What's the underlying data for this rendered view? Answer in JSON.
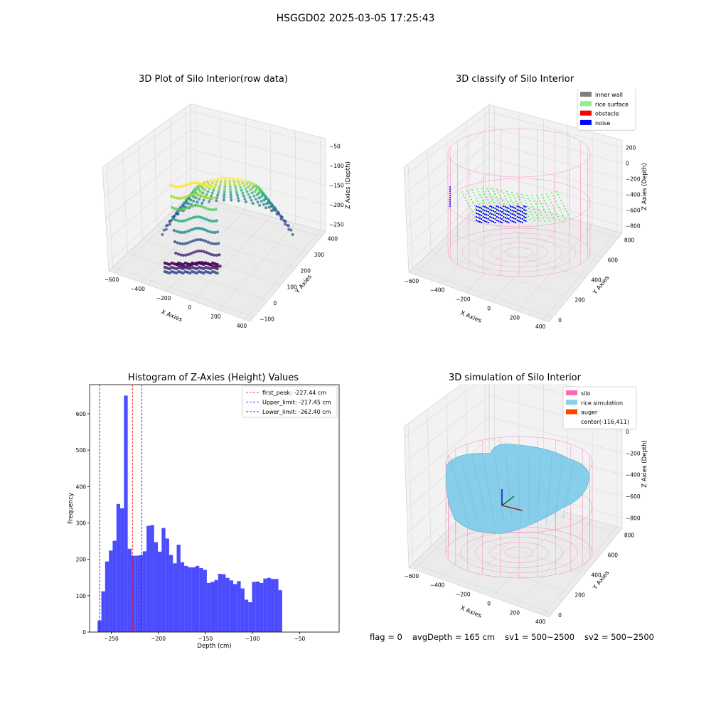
{
  "figure": {
    "suptitle": "HSGGD02 2025-03-05 17:25:43"
  },
  "chart_data": [
    {
      "type": "scatter",
      "subtype": "3d",
      "title": "3D Plot of Silo Interior(row data)",
      "xlabel": "X Axies",
      "ylabel": "Y Axies",
      "zlabel": "Z Axies (Depth)",
      "x_ticks": [
        "−600",
        "−400",
        "−200",
        "0",
        "200",
        "400"
      ],
      "y_ticks": [
        "−100",
        "0",
        "100",
        "200",
        "300",
        "400"
      ],
      "z_ticks": [
        "−50",
        "−100",
        "−150",
        "−200",
        "−250"
      ],
      "colormap": "viridis"
    },
    {
      "type": "scatter",
      "subtype": "3d",
      "title": "3D classify of Silo Interior",
      "xlabel": "X Axies",
      "ylabel": "Y Axies",
      "zlabel": "Z Axies (Depth)",
      "x_ticks": [
        "−600",
        "−400",
        "−200",
        "0",
        "200",
        "400"
      ],
      "y_ticks": [
        "0",
        "200",
        "400",
        "600",
        "800"
      ],
      "z_ticks": [
        "200",
        "0",
        "−200",
        "−400",
        "−600",
        "−800"
      ],
      "legend": [
        {
          "label": "inner wall",
          "color": "#808080"
        },
        {
          "label": "rice surface",
          "color": "#90ee90"
        },
        {
          "label": "obstacle",
          "color": "#ff0000"
        },
        {
          "label": "noise",
          "color": "#0000ff"
        }
      ],
      "legend_position": "top-right"
    },
    {
      "type": "bar",
      "subtype": "histogram",
      "title": "Histogram of Z-Axies (Height) Values",
      "xlabel": "Depth (cm)",
      "ylabel": "Frequency",
      "xlim": [
        -273,
        -8
      ],
      "ylim": [
        0,
        680
      ],
      "x_ticks": [
        -250,
        -200,
        -150,
        -100,
        -50
      ],
      "x_tick_labels": [
        "−250",
        "−200",
        "−150",
        "−100",
        "−50"
      ],
      "y_ticks": [
        0,
        100,
        200,
        300,
        400,
        500,
        600
      ],
      "bar_color": "#0000ff",
      "bin_start": -264.5,
      "bin_width": 4,
      "values": [
        32,
        112,
        194,
        224,
        251,
        352,
        340,
        650,
        229,
        210,
        210,
        212,
        222,
        292,
        294,
        247,
        221,
        286,
        257,
        212,
        189,
        240,
        192,
        182,
        178,
        178,
        182,
        176,
        171,
        135,
        138,
        143,
        160,
        159,
        149,
        142,
        132,
        140,
        120,
        89,
        82,
        138,
        139,
        135,
        147,
        149,
        146,
        146,
        115
      ],
      "vlines": [
        {
          "label": "first_peak: -227.44 cm",
          "x": -227.44,
          "color": "#ff0000"
        },
        {
          "label": "Upper_limit: -217.45 cm",
          "x": -217.45,
          "color": "#0000ff"
        },
        {
          "label": "Lower_limit: -262.40 cm",
          "x": -262.4,
          "color": "#0000ff"
        }
      ],
      "legend_position": "top-right"
    },
    {
      "type": "surface",
      "subtype": "3d",
      "title": "3D simulation of Silo Interior",
      "xlabel": "X Axies",
      "ylabel": "Y Axies",
      "zlabel": "Z Axies (Depth)",
      "x_ticks": [
        "−600",
        "−400",
        "−200",
        "0",
        "200",
        "400"
      ],
      "y_ticks": [
        "0",
        "200",
        "400",
        "600",
        "800"
      ],
      "z_ticks": [
        "200",
        "0",
        "−200",
        "−400",
        "−600",
        "−800"
      ],
      "legend": [
        {
          "label": "silo",
          "color": "#ff69b4"
        },
        {
          "label": "rice simulation",
          "color": "#87ceeb"
        },
        {
          "label": "auger",
          "color": "#ff4500"
        },
        {
          "label": "center(-116,411)",
          "color": ""
        }
      ],
      "legend_position": "top-right"
    }
  ],
  "status": {
    "flag": "flag = 0",
    "avg_depth": "avgDepth = 165 cm",
    "sv1": "sv1 = 500~2500",
    "sv2": "sv2 = 500~2500"
  }
}
